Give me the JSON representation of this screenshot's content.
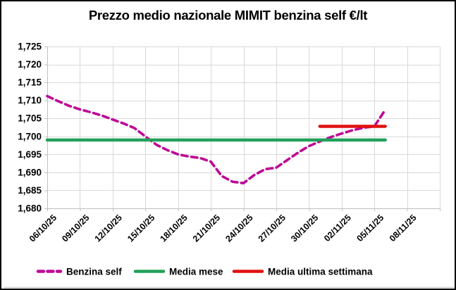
{
  "title": "Prezzo medio nazionale MIMIT benzina self €/lt",
  "colors": {
    "benzina": "#BE0895",
    "media_mese": "#22A05A",
    "media_settimana": "#E01111",
    "gridline": "#D9D9D9",
    "axis_line": "#BFBFBF",
    "text": "#000000",
    "frame_border": "#000000",
    "bottom_rule": "#C9C9C9",
    "background": "#FFFFFF"
  },
  "chart_data": {
    "type": "line",
    "title": "Prezzo medio nazionale MIMIT benzina self €/lt",
    "xlabel": "",
    "ylabel": "",
    "grid": true,
    "legend_position": "bottom",
    "ylim": [
      1680,
      1725
    ],
    "y_ticks": [
      1680,
      1685,
      1690,
      1695,
      1700,
      1705,
      1710,
      1715,
      1720,
      1725
    ],
    "y_tick_labels": [
      "1,680",
      "1,685",
      "1,690",
      "1,695",
      "1,700",
      "1,705",
      "1,710",
      "1,715",
      "1,720",
      "1,725"
    ],
    "x_tick_labels": [
      "06/10/25",
      "09/10/25",
      "12/10/25",
      "15/10/25",
      "18/10/25",
      "21/10/25",
      "24/10/25",
      "27/10/25",
      "30/10/25",
      "02/11/25",
      "05/11/25",
      "08/11/25"
    ],
    "x_tick_interval_days": 3,
    "x_total_days": 36,
    "series": [
      {
        "name": "Benzina self",
        "kind": "line",
        "style": "dashed",
        "color_key": "benzina",
        "dates": [
          "06/10/25",
          "07/10/25",
          "08/10/25",
          "09/10/25",
          "10/10/25",
          "11/10/25",
          "12/10/25",
          "13/10/25",
          "14/10/25",
          "15/10/25",
          "16/10/25",
          "17/10/25",
          "18/10/25",
          "19/10/25",
          "20/10/25",
          "21/10/25",
          "22/10/25",
          "23/10/25",
          "24/10/25",
          "25/10/25",
          "26/10/25",
          "27/10/25",
          "28/10/25",
          "29/10/25",
          "30/10/25",
          "31/10/25",
          "01/11/25",
          "02/11/25",
          "03/11/25",
          "04/11/25",
          "05/11/25",
          "06/11/25"
        ],
        "values": [
          1711.2,
          1709.8,
          1708.5,
          1707.5,
          1706.7,
          1705.8,
          1704.7,
          1703.6,
          1702.3,
          1700.0,
          1697.7,
          1696.2,
          1695.0,
          1694.4,
          1694.0,
          1693.0,
          1689.0,
          1687.4,
          1687.0,
          1689.3,
          1690.9,
          1691.3,
          1693.4,
          1695.5,
          1697.3,
          1698.6,
          1699.8,
          1700.8,
          1701.7,
          1702.4,
          1702.8,
          1707.4
        ]
      },
      {
        "name": "Media mese",
        "kind": "hline",
        "style": "solid",
        "color_key": "media_mese",
        "value": 1699.0,
        "start_day": 0,
        "end_day": 31
      },
      {
        "name": "Media ultima settimana",
        "kind": "hline",
        "style": "solid",
        "color_key": "media_settimana",
        "value": 1702.8,
        "start_day": 25,
        "end_day": 31
      }
    ],
    "legend": [
      {
        "label": "Benzina self",
        "style": "dashed",
        "color_key": "benzina"
      },
      {
        "label": "Media mese",
        "style": "solid",
        "color_key": "media_mese"
      },
      {
        "label": "Media ultima settimana",
        "style": "solid",
        "color_key": "media_settimana"
      }
    ]
  }
}
